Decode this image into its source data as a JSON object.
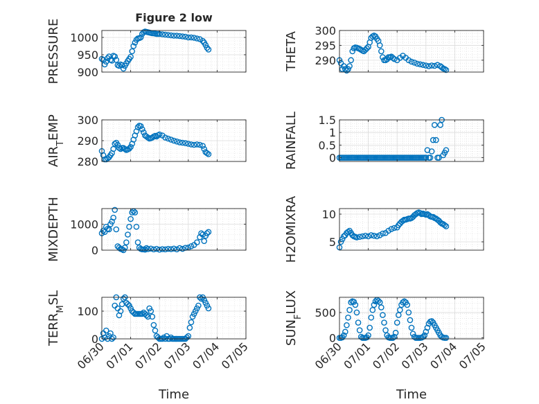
{
  "figure": {
    "title": "Figure 2 low",
    "marker_color": "#0072BD",
    "x_axis_label": "Time",
    "x_tick_labels": [
      "06/30",
      "07/01",
      "07/02",
      "07/03",
      "07/04",
      "07/05"
    ]
  },
  "chart_data": [
    {
      "type": "scatter",
      "ylabel": "PRESSURE",
      "ylim": [
        900,
        1020
      ],
      "yticks": [
        900,
        950,
        1000
      ],
      "xlim": [
        0,
        5
      ],
      "grid": true,
      "x": [
        0.0,
        0.05,
        0.1,
        0.15,
        0.2,
        0.25,
        0.3,
        0.35,
        0.4,
        0.45,
        0.5,
        0.55,
        0.6,
        0.65,
        0.7,
        0.75,
        0.8,
        0.85,
        0.9,
        0.95,
        1.0,
        1.05,
        1.1,
        1.15,
        1.2,
        1.25,
        1.3,
        1.35,
        1.4,
        1.45,
        1.5,
        1.55,
        1.6,
        1.65,
        1.7,
        1.75,
        1.8,
        1.85,
        1.9,
        1.95,
        2.0,
        2.1,
        2.2,
        2.3,
        2.4,
        2.5,
        2.6,
        2.7,
        2.8,
        2.9,
        3.0,
        3.1,
        3.2,
        3.3,
        3.4,
        3.5,
        3.55,
        3.6,
        3.65,
        3.7
      ],
      "y": [
        938,
        935,
        922,
        930,
        940,
        945,
        935,
        933,
        947,
        945,
        935,
        920,
        918,
        922,
        920,
        910,
        918,
        925,
        932,
        938,
        944,
        960,
        975,
        985,
        993,
        997,
        998,
        1000,
        1010,
        1015,
        1017,
        1016,
        1015,
        1014,
        1013,
        1012,
        1012,
        1011,
        1010,
        1010,
        1010,
        1009,
        1008,
        1007,
        1006,
        1005,
        1005,
        1004,
        1003,
        1002,
        1000,
        1000,
        999,
        997,
        995,
        990,
        985,
        978,
        970,
        965
      ]
    },
    {
      "type": "scatter",
      "ylabel": "THETA",
      "ylim": [
        286,
        300
      ],
      "yticks": [
        290,
        295,
        300
      ],
      "xlim": [
        0,
        5
      ],
      "grid": true,
      "x": [
        0.0,
        0.05,
        0.1,
        0.15,
        0.2,
        0.25,
        0.3,
        0.35,
        0.4,
        0.45,
        0.5,
        0.55,
        0.6,
        0.65,
        0.7,
        0.75,
        0.8,
        0.85,
        0.9,
        0.95,
        1.0,
        1.05,
        1.1,
        1.15,
        1.2,
        1.25,
        1.3,
        1.35,
        1.4,
        1.45,
        1.5,
        1.55,
        1.6,
        1.65,
        1.7,
        1.75,
        1.8,
        1.85,
        1.9,
        2.0,
        2.1,
        2.2,
        2.3,
        2.4,
        2.5,
        2.6,
        2.7,
        2.8,
        2.9,
        3.0,
        3.1,
        3.2,
        3.3,
        3.4,
        3.5,
        3.55,
        3.6,
        3.65,
        3.7
      ],
      "y": [
        290,
        289,
        287,
        288,
        287,
        286.5,
        287,
        288,
        290,
        293,
        294,
        294.3,
        294.2,
        294,
        293.8,
        293.5,
        293.2,
        293,
        293.5,
        294,
        294.5,
        296,
        297.5,
        298,
        298.3,
        298,
        297.2,
        296.5,
        295,
        293,
        291,
        290,
        290,
        290.3,
        291,
        291,
        291.2,
        290.8,
        290.4,
        290,
        290.8,
        291.5,
        290.8,
        290,
        289.5,
        289.2,
        288.8,
        288.6,
        288.4,
        288.2,
        288,
        288.2,
        288.1,
        288.4,
        288,
        287.6,
        287.2,
        287,
        286.7
      ]
    },
    {
      "type": "scatter",
      "ylabel": "AIR_TEMP",
      "ylim": [
        280,
        300
      ],
      "yticks": [
        280,
        290,
        300
      ],
      "xlim": [
        0,
        5
      ],
      "grid": true,
      "x": [
        0.0,
        0.05,
        0.1,
        0.15,
        0.2,
        0.25,
        0.3,
        0.35,
        0.4,
        0.45,
        0.5,
        0.55,
        0.6,
        0.65,
        0.7,
        0.75,
        0.8,
        0.85,
        0.9,
        0.95,
        1.0,
        1.05,
        1.1,
        1.15,
        1.2,
        1.25,
        1.3,
        1.35,
        1.4,
        1.45,
        1.5,
        1.55,
        1.6,
        1.65,
        1.7,
        1.75,
        1.8,
        1.85,
        1.9,
        1.95,
        2.0,
        2.1,
        2.2,
        2.3,
        2.4,
        2.5,
        2.6,
        2.7,
        2.8,
        2.9,
        3.0,
        3.1,
        3.2,
        3.3,
        3.4,
        3.5,
        3.55,
        3.6,
        3.65,
        3.7
      ],
      "y": [
        285,
        283,
        281,
        281,
        281.5,
        282,
        283,
        284,
        286,
        288.5,
        289,
        288,
        286.5,
        286,
        286.5,
        286.5,
        286,
        285.5,
        285.8,
        286.2,
        287,
        288.5,
        290.5,
        292.5,
        294.5,
        296.5,
        297.2,
        297,
        295.5,
        294,
        292.5,
        292,
        291.5,
        291,
        291.2,
        291.5,
        292,
        292.3,
        292,
        292.6,
        293,
        292.5,
        291.5,
        291,
        290.5,
        290,
        289.6,
        289.2,
        289,
        288.8,
        288.5,
        288.2,
        288,
        288.2,
        288,
        287.5,
        286,
        284.5,
        284,
        283.5
      ]
    },
    {
      "type": "scatter",
      "ylabel": "RAINFALL",
      "ylim": [
        -0.15,
        1.5
      ],
      "yticks": [
        0,
        0.5,
        1,
        1.5
      ],
      "ytick_labels": [
        "0",
        "0.5",
        "1",
        "1.5"
      ],
      "xlim": [
        0,
        5
      ],
      "grid": true,
      "x": [
        0.0,
        0.05,
        0.1,
        0.15,
        0.2,
        0.25,
        0.3,
        0.35,
        0.4,
        0.45,
        0.5,
        0.55,
        0.6,
        0.65,
        0.7,
        0.75,
        0.8,
        0.85,
        0.9,
        0.95,
        1.0,
        1.05,
        1.1,
        1.15,
        1.2,
        1.25,
        1.3,
        1.35,
        1.4,
        1.45,
        1.5,
        1.55,
        1.6,
        1.65,
        1.7,
        1.75,
        1.8,
        1.85,
        1.9,
        1.95,
        2.0,
        2.05,
        2.1,
        2.15,
        2.2,
        2.25,
        2.3,
        2.35,
        2.4,
        2.45,
        2.5,
        2.55,
        2.6,
        2.65,
        2.7,
        2.75,
        2.8,
        2.85,
        2.9,
        2.95,
        3.0,
        3.05,
        3.1,
        3.15,
        3.2,
        3.25,
        3.3,
        3.35,
        3.4,
        3.45,
        3.5,
        3.55,
        3.6,
        3.65,
        3.7
      ],
      "y": [
        0,
        0,
        0,
        0,
        0,
        0,
        0,
        0,
        0,
        0,
        0,
        0,
        0,
        0,
        0,
        0,
        0,
        0,
        0,
        0,
        0,
        0,
        0,
        0,
        0,
        0,
        0,
        0,
        0,
        0,
        0,
        0,
        0,
        0,
        0,
        0,
        0,
        0,
        0,
        0,
        0,
        0,
        0,
        0,
        0,
        0,
        0,
        0,
        0,
        0,
        0,
        0,
        0,
        0,
        0,
        0,
        0,
        0,
        0,
        0,
        0,
        0.3,
        0,
        0,
        0.25,
        0.7,
        1.3,
        0.7,
        0,
        0,
        1.3,
        1.5,
        0.1,
        0.2,
        0.3
      ]
    },
    {
      "type": "scatter",
      "ylabel": "MIXDEPTH",
      "ylim": [
        0,
        1600
      ],
      "yticks": [
        0,
        1000
      ],
      "xlim": [
        0,
        5
      ],
      "grid": true,
      "x": [
        0.0,
        0.05,
        0.1,
        0.15,
        0.2,
        0.25,
        0.3,
        0.35,
        0.4,
        0.45,
        0.5,
        0.55,
        0.6,
        0.65,
        0.7,
        0.75,
        0.8,
        0.85,
        0.9,
        0.95,
        1.0,
        1.05,
        1.1,
        1.15,
        1.2,
        1.25,
        1.3,
        1.35,
        1.4,
        1.45,
        1.5,
        1.55,
        1.6,
        1.7,
        1.8,
        1.9,
        2.0,
        2.1,
        2.2,
        2.3,
        2.4,
        2.5,
        2.6,
        2.7,
        2.8,
        2.9,
        3.0,
        3.1,
        3.2,
        3.3,
        3.4,
        3.45,
        3.5,
        3.55,
        3.6,
        3.65,
        3.7
      ],
      "y": [
        650,
        750,
        700,
        900,
        820,
        800,
        1000,
        1100,
        1250,
        1550,
        800,
        150,
        100,
        50,
        30,
        0,
        100,
        300,
        600,
        900,
        1200,
        1450,
        1500,
        1450,
        900,
        300,
        100,
        50,
        30,
        30,
        20,
        80,
        40,
        60,
        30,
        50,
        20,
        40,
        30,
        50,
        40,
        60,
        30,
        80,
        50,
        90,
        100,
        150,
        200,
        300,
        500,
        650,
        600,
        350,
        550,
        650,
        700
      ]
    },
    {
      "type": "scatter",
      "ylabel": "H2OMIXRA",
      "ylim": [
        3.5,
        11
      ],
      "yticks": [
        5,
        10
      ],
      "xlim": [
        0,
        5
      ],
      "grid": true,
      "x": [
        0.0,
        0.05,
        0.1,
        0.15,
        0.2,
        0.25,
        0.3,
        0.35,
        0.4,
        0.45,
        0.5,
        0.55,
        0.6,
        0.7,
        0.8,
        0.9,
        1.0,
        1.1,
        1.2,
        1.3,
        1.4,
        1.5,
        1.6,
        1.7,
        1.8,
        1.9,
        2.0,
        2.05,
        2.1,
        2.15,
        2.2,
        2.25,
        2.3,
        2.35,
        2.4,
        2.45,
        2.5,
        2.55,
        2.6,
        2.65,
        2.7,
        2.75,
        2.8,
        2.85,
        2.9,
        2.95,
        3.0,
        3.05,
        3.1,
        3.15,
        3.2,
        3.25,
        3.3,
        3.35,
        3.4,
        3.45,
        3.5,
        3.55,
        3.6,
        3.65,
        3.7
      ],
      "y": [
        4,
        5,
        5.5,
        6,
        6.2,
        6.6,
        6.8,
        7,
        6.6,
        6.2,
        6,
        5.9,
        5.8,
        5.9,
        6,
        6.1,
        6,
        6.2,
        6.1,
        6,
        6.2,
        6.5,
        6.6,
        7,
        7.3,
        7.5,
        7.6,
        8,
        8.3,
        8.6,
        8.8,
        9,
        9,
        9.1,
        9.2,
        9.2,
        9.3,
        9.5,
        9.8,
        10,
        10.2,
        10.3,
        10.2,
        10,
        10.1,
        10,
        9.9,
        10,
        9.8,
        9.6,
        9.5,
        9.5,
        9.3,
        9.2,
        9,
        8.8,
        8.5,
        8.3,
        8.2,
        8,
        7.8
      ]
    },
    {
      "type": "scatter",
      "ylabel": "TERR_MSL",
      "ylim": [
        0,
        150
      ],
      "yticks": [
        0,
        100
      ],
      "xlim": [
        0,
        5
      ],
      "grid": true,
      "x": [
        0.0,
        0.05,
        0.1,
        0.15,
        0.2,
        0.25,
        0.3,
        0.35,
        0.4,
        0.45,
        0.5,
        0.55,
        0.6,
        0.65,
        0.7,
        0.75,
        0.8,
        0.85,
        0.9,
        0.95,
        1.0,
        1.05,
        1.1,
        1.15,
        1.2,
        1.25,
        1.3,
        1.35,
        1.4,
        1.45,
        1.5,
        1.55,
        1.6,
        1.65,
        1.7,
        1.75,
        1.8,
        1.85,
        1.9,
        1.95,
        2.0,
        2.05,
        2.1,
        2.15,
        2.2,
        2.25,
        2.3,
        2.35,
        2.4,
        2.45,
        2.5,
        2.55,
        2.6,
        2.65,
        2.7,
        2.75,
        2.8,
        2.85,
        2.9,
        2.95,
        3.0,
        3.05,
        3.1,
        3.15,
        3.2,
        3.25,
        3.3,
        3.35,
        3.4,
        3.45,
        3.5,
        3.55,
        3.6,
        3.65,
        3.7
      ],
      "y": [
        0,
        20,
        5,
        30,
        0,
        10,
        20,
        0,
        5,
        120,
        150,
        110,
        85,
        100,
        125,
        145,
        150,
        130,
        125,
        120,
        110,
        100,
        95,
        90,
        90,
        90,
        90,
        90,
        90,
        95,
        90,
        85,
        80,
        110,
        100,
        80,
        50,
        30,
        10,
        5,
        0,
        0,
        0,
        5,
        0,
        10,
        0,
        0,
        5,
        0,
        0,
        0,
        0,
        0,
        0,
        0,
        0,
        0,
        0,
        5,
        10,
        40,
        60,
        80,
        90,
        100,
        110,
        120,
        150,
        145,
        150,
        140,
        130,
        120,
        110
      ]
    },
    {
      "type": "scatter",
      "ylabel": "SUN_FLUX",
      "ylim": [
        -20,
        800
      ],
      "yticks": [
        0,
        500
      ],
      "xlim": [
        0,
        5
      ],
      "grid": true,
      "x": [
        0.0,
        0.05,
        0.1,
        0.15,
        0.2,
        0.25,
        0.3,
        0.35,
        0.4,
        0.45,
        0.5,
        0.55,
        0.6,
        0.65,
        0.7,
        0.75,
        0.8,
        0.85,
        0.9,
        0.95,
        1.0,
        1.05,
        1.1,
        1.15,
        1.2,
        1.25,
        1.3,
        1.35,
        1.4,
        1.45,
        1.5,
        1.55,
        1.6,
        1.65,
        1.7,
        1.75,
        1.8,
        1.85,
        1.9,
        1.95,
        2.0,
        2.05,
        2.1,
        2.15,
        2.2,
        2.25,
        2.3,
        2.35,
        2.4,
        2.45,
        2.5,
        2.55,
        2.6,
        2.65,
        2.7,
        2.75,
        2.8,
        2.85,
        2.9,
        2.95,
        3.0,
        3.05,
        3.1,
        3.15,
        3.2,
        3.25,
        3.3,
        3.35,
        3.4,
        3.45,
        3.5,
        3.55,
        3.6,
        3.65,
        3.7
      ],
      "y": [
        0,
        0,
        10,
        50,
        120,
        250,
        400,
        550,
        700,
        720,
        710,
        650,
        500,
        300,
        150,
        20,
        0,
        0,
        0,
        10,
        50,
        200,
        400,
        550,
        650,
        720,
        750,
        730,
        700,
        600,
        450,
        300,
        150,
        50,
        10,
        0,
        0,
        0,
        20,
        100,
        300,
        450,
        550,
        650,
        700,
        720,
        700,
        650,
        500,
        350,
        200,
        80,
        20,
        0,
        0,
        0,
        0,
        5,
        20,
        50,
        120,
        200,
        280,
        320,
        330,
        300,
        250,
        200,
        150,
        100,
        50,
        20,
        5,
        0,
        0
      ]
    }
  ]
}
